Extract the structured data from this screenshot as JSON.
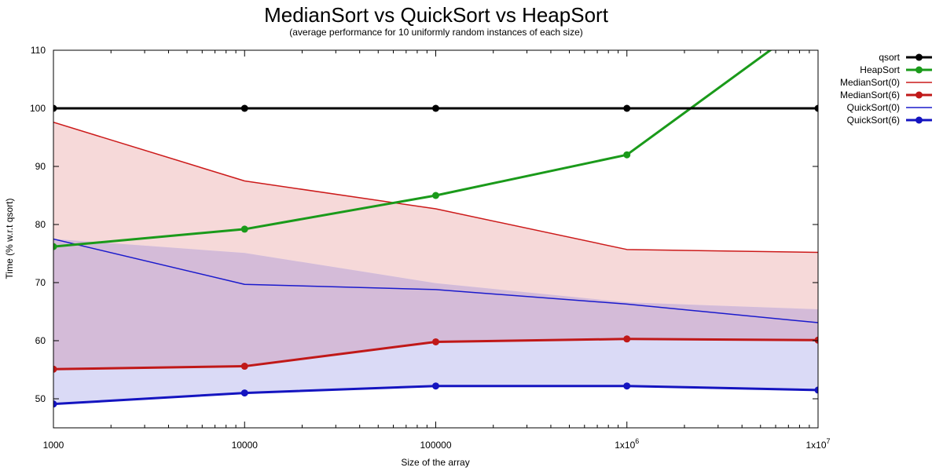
{
  "chart_data": {
    "type": "line",
    "title": "MedianSort vs QuickSort vs HeapSort",
    "subtitle": "(average performance for 10 uniformly random instances of each size)",
    "xlabel": "Size of the array",
    "ylabel": "Time (% w.r.t qsort)",
    "xscale": "log",
    "xlim": [
      1000,
      10000000
    ],
    "ylim": [
      45,
      110
    ],
    "x": [
      1000,
      10000,
      100000,
      1000000,
      10000000
    ],
    "x_tick_labels": [
      {
        "value": 1000,
        "base": "1000",
        "exp": ""
      },
      {
        "value": 10000,
        "base": "10000",
        "exp": ""
      },
      {
        "value": 100000,
        "base": "100000",
        "exp": ""
      },
      {
        "value": 1000000,
        "base": "1x10",
        "exp": "6"
      },
      {
        "value": 10000000,
        "base": "1x10",
        "exp": "7"
      }
    ],
    "y_ticks": [
      50,
      60,
      70,
      80,
      90,
      100,
      110
    ],
    "grid": false,
    "legend_position": "top-right (outside)",
    "series": [
      {
        "name": "qsort",
        "color": "#000000",
        "markers": true,
        "width": 3,
        "values": [
          100,
          100,
          100,
          100,
          100
        ]
      },
      {
        "name": "HeapSort",
        "color": "#1a9a1a",
        "markers": true,
        "width": 3,
        "values": [
          76.2,
          79.2,
          85.0,
          92.0,
          116.0
        ]
      },
      {
        "name": "MedianSort(0)",
        "color": "#cc1a1a",
        "markers": false,
        "width": 1.5,
        "values": [
          97.6,
          87.5,
          82.7,
          75.7,
          75.2
        ]
      },
      {
        "name": "MedianSort(6)",
        "color": "#c01818",
        "markers": true,
        "width": 3,
        "values": [
          55.1,
          55.6,
          59.8,
          60.3,
          60.1
        ]
      },
      {
        "name": "QuickSort(0)",
        "color": "#1a1acc",
        "markers": false,
        "width": 1.5,
        "values": [
          77.5,
          69.7,
          68.8,
          66.3,
          63.1
        ]
      },
      {
        "name": "QuickSort(6)",
        "color": "#1414c0",
        "markers": true,
        "width": 3,
        "values": [
          49.1,
          51.0,
          52.2,
          52.2,
          51.5
        ]
      }
    ],
    "bands": [
      {
        "color": "#f6d9d9",
        "lower": [
          55.1,
          55.6,
          59.8,
          60.3,
          60.1
        ],
        "upper": [
          97.6,
          87.5,
          82.7,
          75.7,
          75.2
        ]
      },
      {
        "color": "#dadaf6",
        "lower": [
          49.1,
          51.0,
          52.2,
          52.2,
          51.5
        ],
        "upper": [
          77.5,
          75.1,
          69.9,
          66.6,
          65.4
        ]
      },
      {
        "color": "#d4bbd8",
        "lower": [
          55.1,
          55.6,
          59.8,
          60.3,
          60.1
        ],
        "upper": [
          77.5,
          75.1,
          69.9,
          66.6,
          65.4
        ]
      }
    ]
  }
}
